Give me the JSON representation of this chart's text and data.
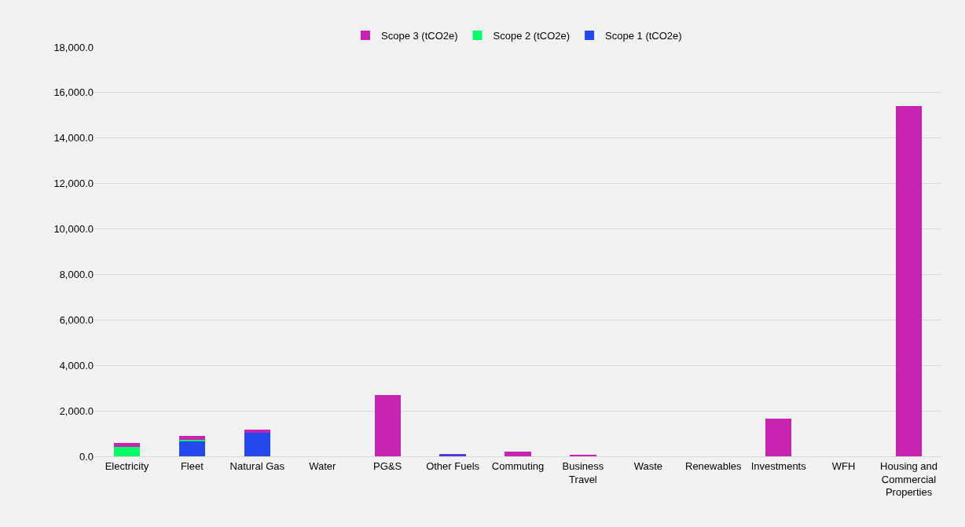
{
  "chart_data": {
    "type": "bar",
    "stacked": true,
    "categories": [
      "Electricity",
      "Fleet",
      "Natural Gas",
      "Water",
      "PG&S",
      "Other Fuels",
      "Commuting",
      "Business Travel",
      "Waste",
      "Renewables",
      "Investments",
      "WFH",
      "Housing and Commercial Properties"
    ],
    "series": [
      {
        "name": "Scope 1 (tCO2e)",
        "color": "#2349ec",
        "values": [
          0,
          690,
          1020,
          0,
          0,
          70,
          0,
          0,
          0,
          0,
          0,
          0,
          0
        ]
      },
      {
        "name": "Scope 2 (tCO2e)",
        "color": "#00ff66",
        "values": [
          430,
          40,
          0,
          0,
          0,
          0,
          0,
          0,
          0,
          0,
          0,
          0,
          0
        ]
      },
      {
        "name": "Scope 3 (tCO2e)",
        "color": "#c724b1",
        "values": [
          150,
          160,
          170,
          0,
          2700,
          30,
          210,
          40,
          0,
          0,
          1650,
          0,
          15400
        ]
      }
    ],
    "ylim": [
      0,
      18000
    ],
    "yticks": [
      {
        "value": 0,
        "label": "0.0"
      },
      {
        "value": 2000,
        "label": "2,000.0"
      },
      {
        "value": 4000,
        "label": "4,000.0"
      },
      {
        "value": 6000,
        "label": "6,000.0"
      },
      {
        "value": 8000,
        "label": "8,000.0"
      },
      {
        "value": 10000,
        "label": "10,000.0"
      },
      {
        "value": 12000,
        "label": "12,000.0"
      },
      {
        "value": 14000,
        "label": "14,000.0"
      },
      {
        "value": 16000,
        "label": "16,000.0"
      },
      {
        "value": 18000,
        "label": "18,000.0"
      }
    ],
    "grid": "y",
    "legend": "top"
  }
}
